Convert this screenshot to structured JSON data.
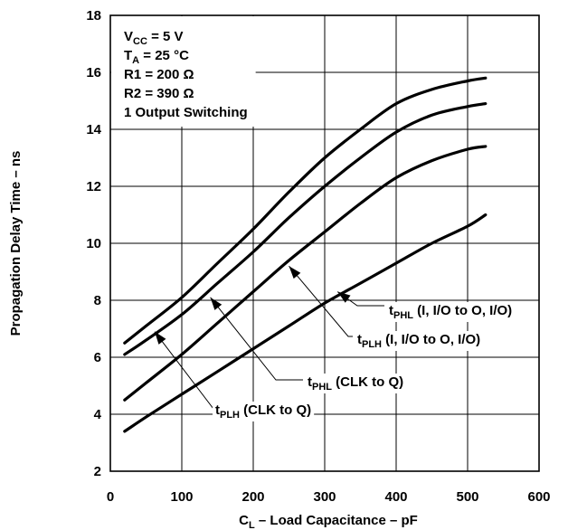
{
  "chart_data": {
    "type": "line",
    "xlabel": {
      "main": "C",
      "sub": "L",
      "rest": " – Load Capacitance – pF"
    },
    "ylabel": "Propagation Delay Time – ns",
    "xlim": [
      0,
      600
    ],
    "ylim": [
      2,
      18
    ],
    "xticks": [
      0,
      100,
      200,
      300,
      400,
      500,
      600
    ],
    "yticks": [
      2,
      4,
      6,
      8,
      10,
      12,
      14,
      16,
      18
    ],
    "grid": true,
    "conditions": [
      {
        "main": "V",
        "sub": "CC",
        "rest": " = 5 V"
      },
      {
        "main": "T",
        "sub": "A",
        "rest": " = 25 °C"
      },
      {
        "main": "R1 = 200 Ω",
        "sub": "",
        "rest": ""
      },
      {
        "main": "R2 = 390 Ω",
        "sub": "",
        "rest": ""
      },
      {
        "main": "1 Output Switching",
        "sub": "",
        "rest": ""
      }
    ],
    "series": [
      {
        "name": {
          "main": "t",
          "sub": "PLH",
          "rest": " (CLK to Q)"
        },
        "x": [
          20,
          50,
          100,
          150,
          200,
          250,
          300,
          350,
          400,
          450,
          500,
          525
        ],
        "y": [
          6.5,
          7.1,
          8.1,
          9.3,
          10.5,
          11.8,
          13.0,
          14.0,
          14.9,
          15.4,
          15.7,
          15.8
        ]
      },
      {
        "name": {
          "main": "t",
          "sub": "PHL",
          "rest": " (CLK to Q)"
        },
        "x": [
          20,
          50,
          100,
          150,
          200,
          250,
          300,
          350,
          400,
          450,
          500,
          525
        ],
        "y": [
          6.1,
          6.6,
          7.5,
          8.6,
          9.7,
          10.9,
          12.0,
          13.0,
          13.9,
          14.5,
          14.8,
          14.9
        ]
      },
      {
        "name": {
          "main": "t",
          "sub": "PLH",
          "rest": " (I, I/O to O, I/O)"
        },
        "x": [
          20,
          50,
          100,
          150,
          200,
          250,
          300,
          350,
          400,
          450,
          500,
          525
        ],
        "y": [
          4.5,
          5.1,
          6.1,
          7.2,
          8.3,
          9.4,
          10.4,
          11.4,
          12.3,
          12.9,
          13.3,
          13.4
        ]
      },
      {
        "name": {
          "main": "t",
          "sub": "PHL",
          "rest": " (I, I/O to O, I/O)"
        },
        "x": [
          20,
          50,
          100,
          150,
          200,
          250,
          300,
          350,
          400,
          450,
          500,
          525
        ],
        "y": [
          3.4,
          3.9,
          4.7,
          5.5,
          6.3,
          7.1,
          7.9,
          8.6,
          9.3,
          10.0,
          10.6,
          11.0
        ]
      }
    ],
    "callouts": [
      {
        "series": 0,
        "tip": [
          62,
          6.9
        ],
        "elbow": [
          100,
          8.0
        ],
        "labelAnchor": [
          128,
          4.8
        ]
      },
      {
        "series": 1,
        "tip": [
          140,
          8.1
        ],
        "elbow": [
          245,
          6.6
        ],
        "labelAnchor": [
          240,
          6.6
        ]
      },
      {
        "series": 2,
        "tip": [
          250,
          9.2
        ],
        "elbow": [
          340,
          7.6
        ],
        "labelAnchor": [
          335,
          7.6
        ]
      },
      {
        "series": 3,
        "tip": [
          318,
          8.3
        ],
        "elbow": [
          345,
          7.7
        ],
        "labelAnchor": [
          350,
          7.7
        ]
      }
    ]
  }
}
